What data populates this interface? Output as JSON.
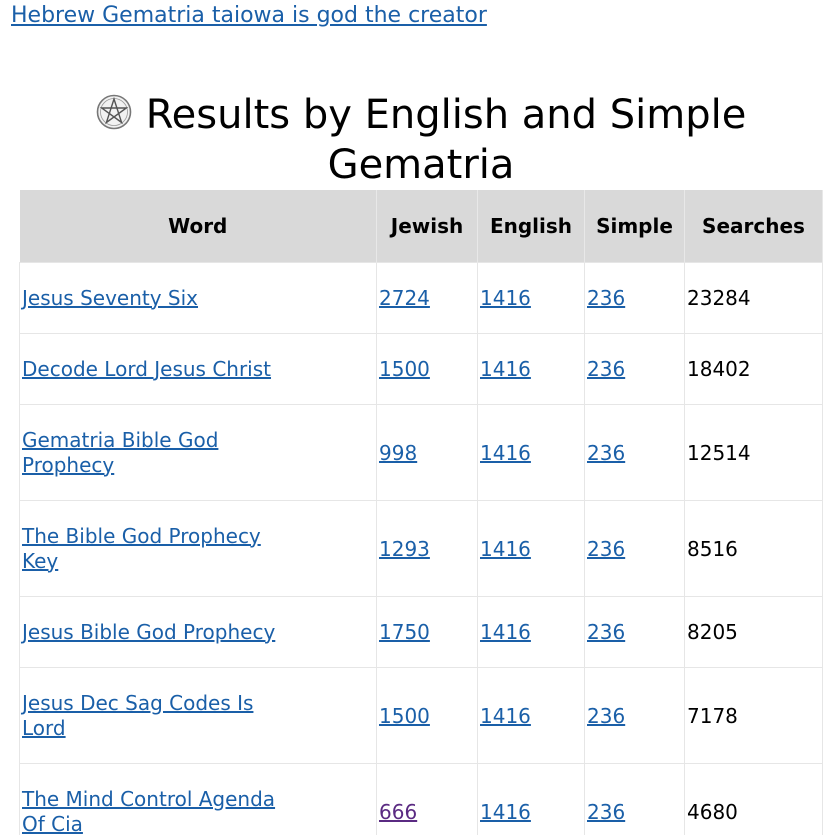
{
  "top_link": "Hebrew Gematria taiowa is god the creator",
  "heading": {
    "line1": "Results by English and Simple",
    "line2": "Gematria"
  },
  "table": {
    "headers": [
      "Word",
      "Jewish",
      "English",
      "Simple",
      "Searches"
    ],
    "rows": [
      {
        "word": "Jesus Seventy Six",
        "jewish": "2724",
        "english": "1416",
        "simple": "236",
        "searches": "23284"
      },
      {
        "word": "Decode Lord Jesus Christ",
        "jewish": "1500",
        "english": "1416",
        "simple": "236",
        "searches": "18402"
      },
      {
        "word": "Gematria Bible God Prophecy",
        "jewish": "998",
        "english": "1416",
        "simple": "236",
        "searches": "12514"
      },
      {
        "word": "The Bible God Prophecy Key",
        "jewish": "1293",
        "english": "1416",
        "simple": "236",
        "searches": "8516"
      },
      {
        "word": "Jesus Bible God Prophecy",
        "jewish": "1750",
        "english": "1416",
        "simple": "236",
        "searches": "8205"
      },
      {
        "word": "Jesus Dec Sag Codes Is Lord",
        "jewish": "1500",
        "english": "1416",
        "simple": "236",
        "searches": "7178"
      },
      {
        "word": "The Mind Control Agenda Of Cia",
        "jewish": "666",
        "english": "1416",
        "simple": "236",
        "searches": "4680"
      }
    ]
  },
  "colors": {
    "link": "#1a5fa8",
    "visited_link": "#5a2a82",
    "header_bg": "#d9d9d9"
  }
}
